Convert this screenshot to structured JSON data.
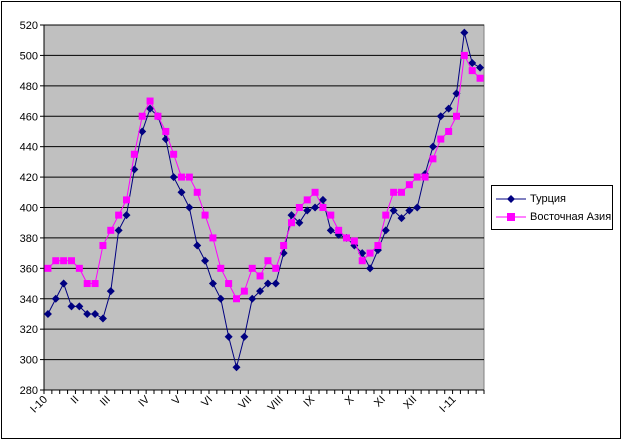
{
  "chart_data": {
    "type": "line",
    "title": "",
    "xlabel": "",
    "ylabel": "",
    "ylim": [
      280,
      520
    ],
    "yticks": [
      280,
      300,
      320,
      340,
      360,
      380,
      400,
      420,
      440,
      460,
      480,
      500,
      520
    ],
    "grid": true,
    "legend_position": "right",
    "month_labels": [
      {
        "index": 0,
        "label": "I-10"
      },
      {
        "index": 4,
        "label": "II"
      },
      {
        "index": 8,
        "label": "III"
      },
      {
        "index": 13,
        "label": "IV"
      },
      {
        "index": 17,
        "label": "V"
      },
      {
        "index": 21,
        "label": "VI"
      },
      {
        "index": 26,
        "label": "VII"
      },
      {
        "index": 30,
        "label": "VIII"
      },
      {
        "index": 34,
        "label": "IX"
      },
      {
        "index": 39,
        "label": "X"
      },
      {
        "index": 43,
        "label": "XI"
      },
      {
        "index": 47,
        "label": "XII"
      },
      {
        "index": 52,
        "label": "I-11"
      }
    ],
    "series": [
      {
        "name": "Турция",
        "color": "#000080",
        "marker": "diamond",
        "values": [
          330,
          340,
          350,
          335,
          335,
          330,
          330,
          327,
          345,
          385,
          395,
          425,
          450,
          465,
          460,
          445,
          420,
          410,
          400,
          375,
          365,
          350,
          340,
          315,
          295,
          315,
          340,
          345,
          350,
          350,
          370,
          395,
          390,
          398,
          400,
          405,
          385,
          382,
          380,
          375,
          370,
          360,
          372,
          385,
          398,
          393,
          398,
          400,
          422,
          440,
          460,
          465,
          475,
          515,
          495,
          492
        ]
      },
      {
        "name": "Восточная Азия",
        "color": "#ff00ff",
        "marker": "square",
        "values": [
          360,
          365,
          365,
          365,
          360,
          350,
          350,
          375,
          385,
          395,
          405,
          435,
          460,
          470,
          460,
          450,
          435,
          420,
          420,
          410,
          395,
          380,
          360,
          350,
          340,
          345,
          360,
          355,
          365,
          360,
          375,
          390,
          400,
          405,
          410,
          400,
          395,
          385,
          380,
          378,
          365,
          370,
          375,
          395,
          410,
          410,
          415,
          420,
          420,
          432,
          445,
          450,
          460,
          500,
          490,
          485
        ]
      }
    ]
  }
}
